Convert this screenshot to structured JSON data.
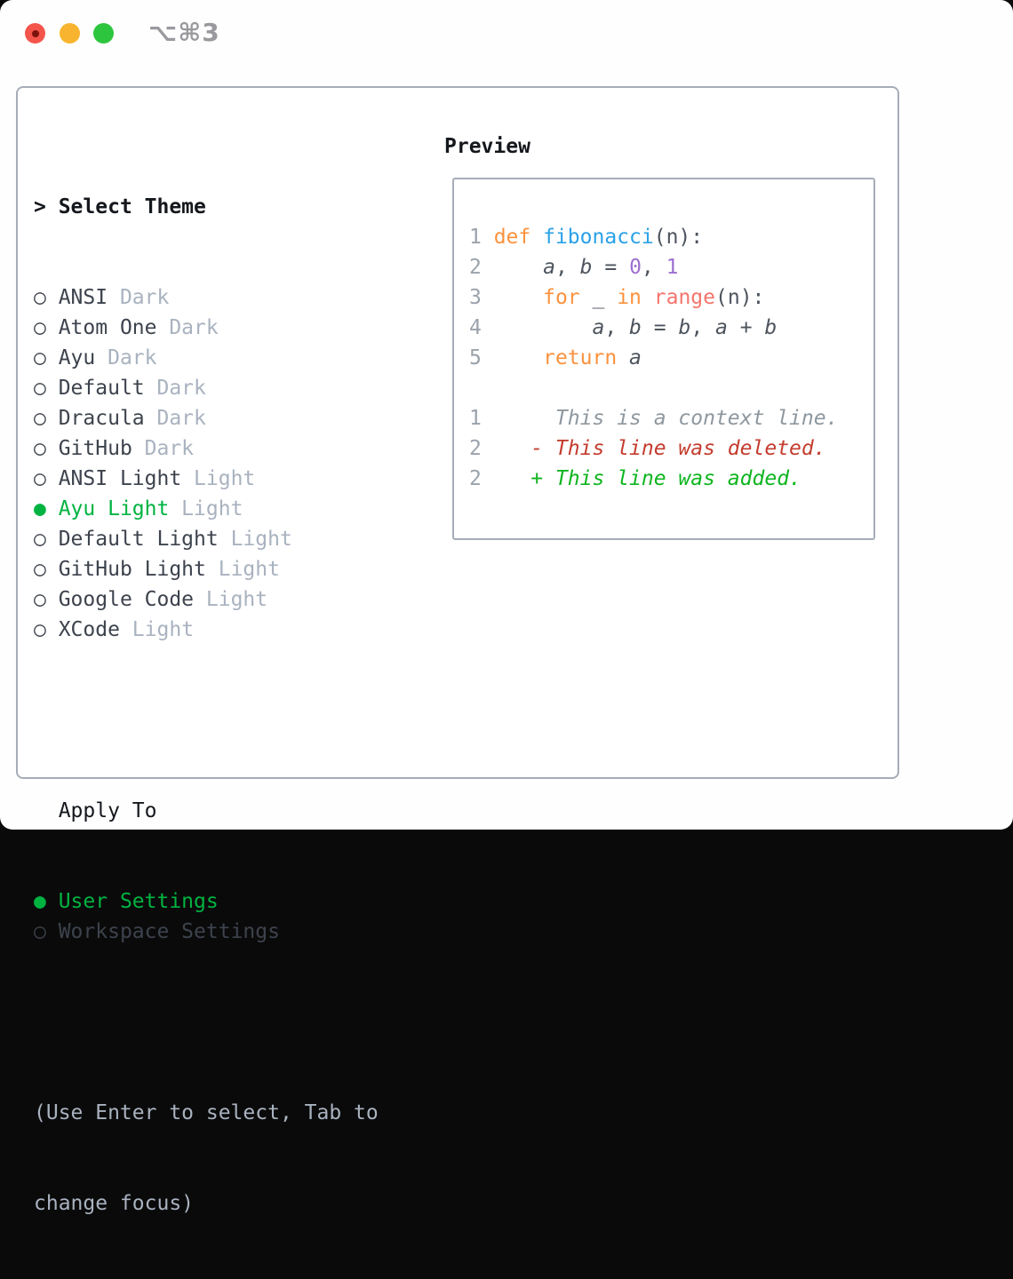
{
  "titlebar": {
    "shortcut": "⌥⌘3",
    "buttons": [
      {
        "name": "close",
        "color": "#f4554b"
      },
      {
        "name": "minimize",
        "color": "#f8b42e"
      },
      {
        "name": "zoom",
        "color": "#2ec53e"
      }
    ]
  },
  "panel": {
    "title_prompt": "> ",
    "title": "Select Theme",
    "themes": [
      {
        "name": "ANSI",
        "variant": "Dark",
        "selected": false
      },
      {
        "name": "Atom One",
        "variant": "Dark",
        "selected": false
      },
      {
        "name": "Ayu",
        "variant": "Dark",
        "selected": false
      },
      {
        "name": "Default",
        "variant": "Dark",
        "selected": false
      },
      {
        "name": "Dracula",
        "variant": "Dark",
        "selected": false
      },
      {
        "name": "GitHub",
        "variant": "Dark",
        "selected": false
      },
      {
        "name": "ANSI Light",
        "variant": "Light",
        "selected": false
      },
      {
        "name": "Ayu Light",
        "variant": "Light",
        "selected": true
      },
      {
        "name": "Default Light",
        "variant": "Light",
        "selected": false
      },
      {
        "name": "GitHub Light",
        "variant": "Light",
        "selected": false
      },
      {
        "name": "Google Code",
        "variant": "Light",
        "selected": false
      },
      {
        "name": "XCode",
        "variant": "Light",
        "selected": false
      }
    ],
    "marker_unselected": "○",
    "marker_selected": "●",
    "apply_to": {
      "label": "Apply To",
      "options": [
        {
          "label": "User Settings",
          "selected": true
        },
        {
          "label": "Workspace Settings",
          "selected": false
        }
      ]
    },
    "hint_lines": [
      "(Use Enter to select, Tab to",
      "change focus)"
    ]
  },
  "preview": {
    "title": "Preview",
    "code_lines": [
      {
        "num": "1",
        "segments": [
          {
            "t": "def",
            "c": "kw"
          },
          {
            "t": " ",
            "c": "pn"
          },
          {
            "t": "fibonacci",
            "c": "fn"
          },
          {
            "t": "(n):",
            "c": "pn"
          }
        ]
      },
      {
        "num": "2",
        "segments": [
          {
            "t": "    ",
            "c": "pn"
          },
          {
            "t": "a",
            "c": "var"
          },
          {
            "t": ", ",
            "c": "pn"
          },
          {
            "t": "b",
            "c": "var"
          },
          {
            "t": " = ",
            "c": "pn"
          },
          {
            "t": "0",
            "c": "lit"
          },
          {
            "t": ", ",
            "c": "pn"
          },
          {
            "t": "1",
            "c": "lit"
          }
        ]
      },
      {
        "num": "3",
        "segments": [
          {
            "t": "    ",
            "c": "pn"
          },
          {
            "t": "for",
            "c": "kw"
          },
          {
            "t": " _ ",
            "c": "pn"
          },
          {
            "t": "in",
            "c": "kw"
          },
          {
            "t": " ",
            "c": "pn"
          },
          {
            "t": "range",
            "c": "call"
          },
          {
            "t": "(n):",
            "c": "pn"
          }
        ]
      },
      {
        "num": "4",
        "segments": [
          {
            "t": "        ",
            "c": "pn"
          },
          {
            "t": "a",
            "c": "var"
          },
          {
            "t": ", ",
            "c": "pn"
          },
          {
            "t": "b",
            "c": "var"
          },
          {
            "t": " = ",
            "c": "pn"
          },
          {
            "t": "b",
            "c": "var"
          },
          {
            "t": ", ",
            "c": "pn"
          },
          {
            "t": "a",
            "c": "var"
          },
          {
            "t": " + ",
            "c": "pn"
          },
          {
            "t": "b",
            "c": "var"
          }
        ]
      },
      {
        "num": "5",
        "segments": [
          {
            "t": "    ",
            "c": "pn"
          },
          {
            "t": "return",
            "c": "kw"
          },
          {
            "t": " ",
            "c": "pn"
          },
          {
            "t": "a",
            "c": "var"
          }
        ]
      },
      {
        "num": "",
        "segments": []
      },
      {
        "num": "1",
        "segments": [
          {
            "t": "     This is a context line.",
            "c": "ctx"
          }
        ]
      },
      {
        "num": "2",
        "segments": [
          {
            "t": "   ",
            "c": "pn"
          },
          {
            "t": "- This line was deleted.",
            "c": "del"
          }
        ]
      },
      {
        "num": "2",
        "segments": [
          {
            "t": "   ",
            "c": "pn"
          },
          {
            "t": "+ This line was added.",
            "c": "add"
          }
        ]
      }
    ]
  },
  "colors": {
    "ink": "#14171c",
    "name": "#3d434d",
    "muted": "#a9b2bf",
    "border": "#a6adb8",
    "selgreen": "#00b341",
    "linenum": "#9aa2ab",
    "kw": "#fb923e",
    "fn": "#2aa1e8",
    "call": "#f4756d",
    "lit": "#9d6fd1",
    "pn": "#4d545d",
    "ctx": "#8e979f",
    "delred": "#c43c2e",
    "addgreen": "#0eb51f",
    "shortcut": "#99999e",
    "tl-red": "#f4554b",
    "tl-red-dot": "#7c130c",
    "tl-yellow": "#f8b42e",
    "tl-green": "#2ec53e"
  }
}
